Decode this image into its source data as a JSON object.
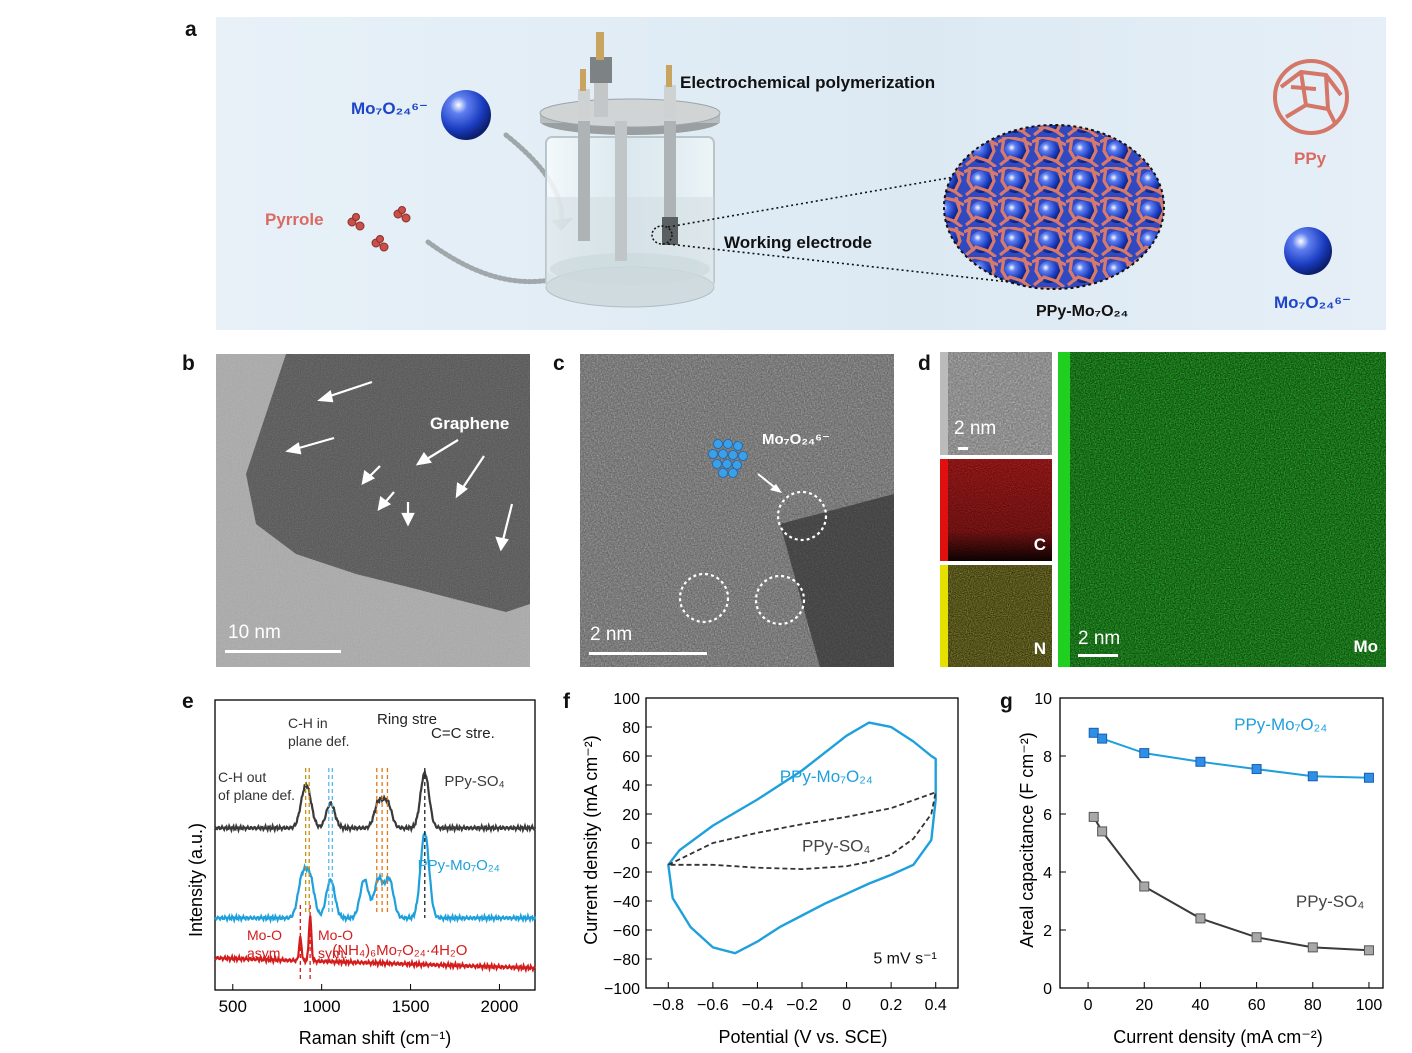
{
  "panel_labels": [
    "a",
    "b",
    "c",
    "d",
    "e",
    "f",
    "g"
  ],
  "panel_a": {
    "process_label": "Electrochemical polymerization",
    "working_electrode_label": "Working electrode",
    "pyrrole_label": "Pyrrole",
    "mo_anion_label": "Mo₇O₂₄⁶⁻",
    "mo_anion_legend_label": "Mo₇O₂₄⁶⁻",
    "ppy_legend_label": "PPy",
    "composite_label": "PPy-Mo₇O₂₄",
    "colors": {
      "mo": "#1e45c8",
      "ppy": "#d96b62",
      "background": "#e4eef6"
    }
  },
  "panel_b": {
    "scale_bar": "10 nm",
    "annotation": "Graphene"
  },
  "panel_c": {
    "scale_bar": "2 nm",
    "annotation": "Mo₇O₂₄⁶⁻"
  },
  "panel_d": {
    "haadf_scale": "2 nm",
    "c_label": "C",
    "n_label": "N",
    "mo_label": "Mo",
    "mo_scale": "2 nm",
    "colors": {
      "C": "#d22020",
      "N": "#d8d020",
      "Mo": "#20c020"
    }
  },
  "chart_data": [
    {
      "panel": "e",
      "type": "line",
      "xlabel": "Raman shift (cm⁻¹)",
      "ylabel": "Intensity (a.u.)",
      "xlim": [
        400,
        2200
      ],
      "xticks": [
        500,
        1000,
        1500,
        2000
      ],
      "annotations": [
        "C-H out",
        "of plane def.",
        "C-H in",
        "plane def.",
        "Ring stre",
        "C=C stre.",
        "Mo-O",
        "asym.",
        "Mo-O",
        "sym."
      ],
      "series": [
        {
          "name": "PPy-SO₄",
          "color": "#3a3a3a",
          "peaks": [
            900,
            925,
            1050,
            1320,
            1370,
            1580
          ]
        },
        {
          "name": "PPy-Mo₇O₂₄",
          "color": "#1ea0dc",
          "peaks": [
            890,
            935,
            1050,
            1240,
            1320,
            1380,
            1580
          ]
        },
        {
          "name": "(NH₄)₆Mo₇O₂₄·4H₂O",
          "color": "#d41c1c",
          "peaks": [
            880,
            935
          ]
        }
      ],
      "reference_lines": [
        {
          "x": 910,
          "color": "#c89010"
        },
        {
          "x": 930,
          "color": "#c89010"
        },
        {
          "x": 1040,
          "color": "#58b8e8"
        },
        {
          "x": 1060,
          "color": "#58b8e8"
        },
        {
          "x": 1310,
          "color": "#e07818"
        },
        {
          "x": 1340,
          "color": "#e07818"
        },
        {
          "x": 1370,
          "color": "#e07818"
        },
        {
          "x": 1580,
          "color": "#222222"
        },
        {
          "x": 880,
          "color": "#d41c1c"
        },
        {
          "x": 935,
          "color": "#d41c1c"
        }
      ]
    },
    {
      "panel": "f",
      "type": "line",
      "xlabel": "Potential (V vs. SCE)",
      "ylabel": "Current density (mA cm⁻²)",
      "xlim": [
        -0.9,
        0.5
      ],
      "ylim": [
        -100,
        100
      ],
      "xticks": [
        -0.8,
        -0.6,
        -0.4,
        -0.2,
        0.0,
        0.2,
        0.4
      ],
      "yticks": [
        -100,
        -80,
        -60,
        -40,
        -20,
        0,
        20,
        40,
        60,
        80,
        100
      ],
      "annotation": "5 mV s⁻¹",
      "series": [
        {
          "name": "PPy-Mo₇O₂₄",
          "color": "#1ea0dc",
          "style": "solid",
          "x": [
            -0.8,
            -0.75,
            -0.6,
            -0.4,
            -0.2,
            0.0,
            0.1,
            0.2,
            0.3,
            0.38,
            0.4,
            0.4,
            0.38,
            0.3,
            0.2,
            0.1,
            0.0,
            -0.1,
            -0.2,
            -0.3,
            -0.4,
            -0.5,
            -0.6,
            -0.7,
            -0.78,
            -0.8
          ],
          "y": [
            -15,
            -5,
            12,
            30,
            50,
            74,
            83,
            80,
            70,
            60,
            58,
            30,
            2,
            -15,
            -22,
            -28,
            -35,
            -42,
            -50,
            -58,
            -68,
            -76,
            -72,
            -58,
            -38,
            -15
          ]
        },
        {
          "name": "PPy-SO₄",
          "color": "#333333",
          "style": "dashed",
          "x": [
            -0.8,
            -0.6,
            -0.4,
            -0.2,
            0.0,
            0.2,
            0.4,
            0.38,
            0.3,
            0.2,
            0.1,
            0.0,
            -0.2,
            -0.4,
            -0.6,
            -0.8
          ],
          "y": [
            -15,
            0,
            7,
            13,
            18,
            24,
            35,
            20,
            3,
            -8,
            -13,
            -16,
            -18,
            -17,
            -15,
            -15
          ]
        }
      ]
    },
    {
      "panel": "g",
      "type": "line",
      "xlabel": "Current density (mA cm⁻²)",
      "ylabel": "Areal capacitance (F cm⁻²)",
      "xlim": [
        -10,
        105
      ],
      "ylim": [
        0,
        10
      ],
      "xticks": [
        0,
        20,
        40,
        60,
        80,
        100
      ],
      "yticks": [
        0,
        2,
        4,
        6,
        8,
        10
      ],
      "series": [
        {
          "name": "PPy-Mo₇O₂₄",
          "color": "#1ea0dc",
          "marker": "square",
          "x": [
            2,
            5,
            20,
            40,
            60,
            80,
            100
          ],
          "y": [
            8.8,
            8.6,
            8.1,
            7.8,
            7.55,
            7.3,
            7.25
          ]
        },
        {
          "name": "PPy-SO₄",
          "color": "#3a3a3a",
          "marker": "square",
          "x": [
            2,
            5,
            20,
            40,
            60,
            80,
            100
          ],
          "y": [
            5.9,
            5.4,
            3.5,
            2.4,
            1.75,
            1.4,
            1.3
          ]
        }
      ]
    }
  ]
}
